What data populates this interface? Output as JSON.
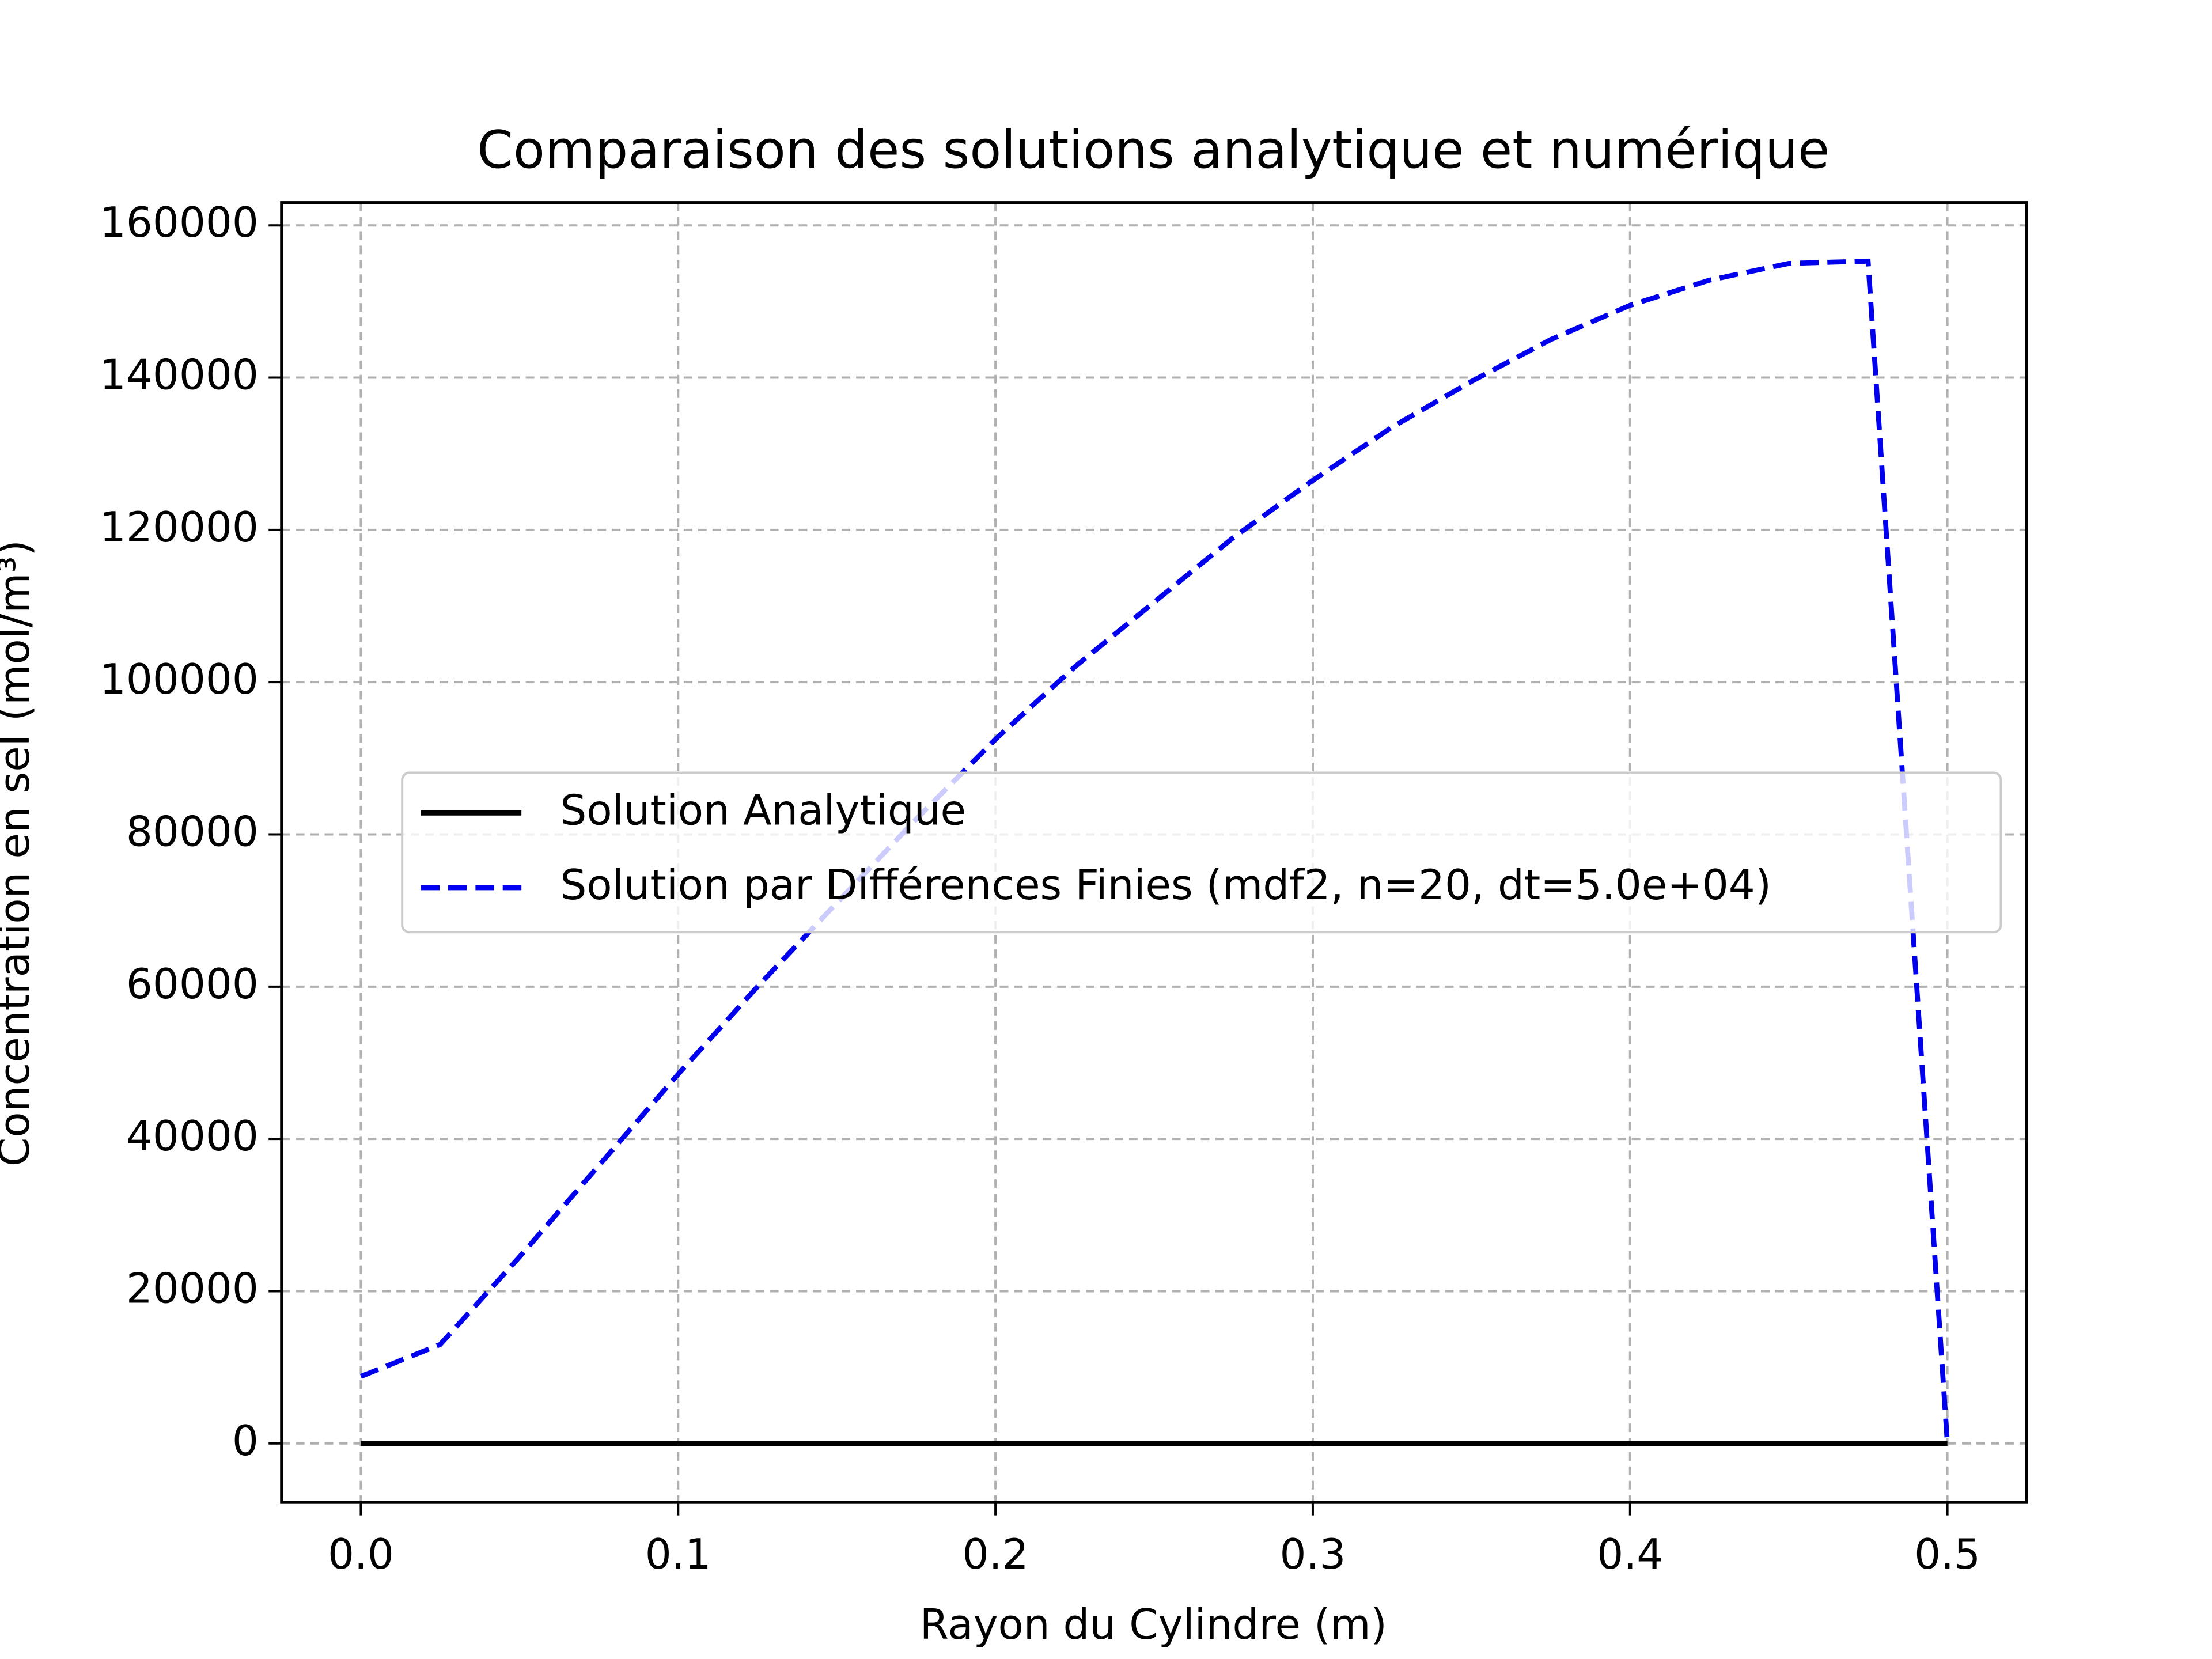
{
  "chart_data": {
    "type": "line",
    "title": "Comparaison des solutions analytique et numérique",
    "x_label": "Rayon du Cylindre (m)",
    "y_label": "Concentration en sel (mol/m³)",
    "x": [
      0,
      0.025,
      0.05,
      0.075,
      0.1,
      0.125,
      0.15,
      0.175,
      0.2,
      0.225,
      0.25,
      0.275,
      0.3,
      0.325,
      0.35,
      0.375,
      0.4,
      0.425,
      0.45,
      0.475,
      0.5
    ],
    "series": [
      {
        "name": "Solution Analytique",
        "color": "#000000",
        "dash": "solid",
        "values": [
          0,
          0,
          0,
          0,
          0,
          0,
          0,
          0,
          0,
          0,
          0,
          0,
          0,
          0,
          0,
          0,
          0,
          0,
          0,
          0,
          0
        ]
      },
      {
        "name": "Solution par Différences Finies (mdf2, n=20, dt=5.0e+04)",
        "color": "#0000ee",
        "dash": "dashed",
        "values": [
          8800,
          13000,
          24500,
          36500,
          48500,
          60000,
          71000,
          82000,
          92500,
          102000,
          110500,
          119000,
          126500,
          133500,
          139500,
          145000,
          149500,
          152800,
          155000,
          155300,
          0
        ]
      }
    ],
    "xlim": [
      -0.025,
      0.525
    ],
    "xticks": [
      {
        "value": 0,
        "label": "0.0"
      },
      0.1,
      0.2,
      0.3,
      0.4,
      0.5
    ],
    "ylim": [
      -7750,
      163000
    ],
    "yticks": [
      0,
      20000,
      40000,
      60000,
      80000,
      100000,
      120000,
      140000,
      160000
    ],
    "grid": true,
    "legend": "center"
  }
}
